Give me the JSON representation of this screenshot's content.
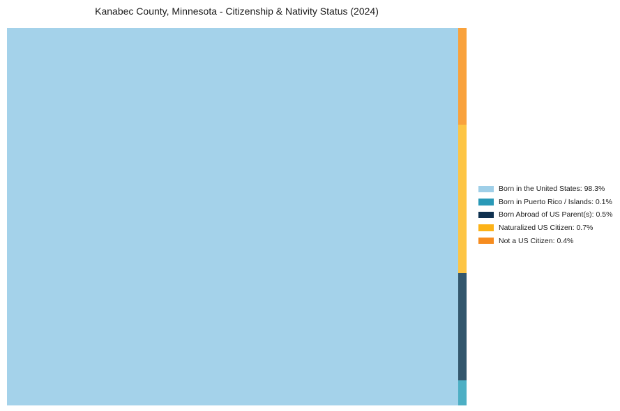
{
  "title": "Kanabec County, Minnesota - Citizenship & Nativity Status (2024)",
  "chart_data": {
    "type": "treemap",
    "title": "Kanabec County, Minnesota - Citizenship & Nativity Status (2024)",
    "categories": [
      "Born in the United States",
      "Born in Puerto Rico / Islands",
      "Born Abroad of US Parent(s)",
      "Naturalized US Citizen",
      "Not a US Citizen"
    ],
    "values": [
      98.3,
      0.1,
      0.5,
      0.7,
      0.4
    ],
    "unit": "%",
    "legend_position": "right",
    "layout": {
      "main": {
        "category": "Born in the United States",
        "value_pct": 98.3,
        "color": "#A4D2EA",
        "width_frac": 0.9818
      },
      "strip": {
        "width_frac": 0.0182,
        "segments": [
          {
            "key": "not-a-us-citizen",
            "category": "Not a US Citizen",
            "value_pct": 0.4,
            "color": "#F9A23C",
            "height_frac": 0.2565
          },
          {
            "key": "naturalized-us-citizen",
            "category": "Naturalized US Citizen",
            "value_pct": 0.7,
            "color": "#FDC544",
            "height_frac": 0.393
          },
          {
            "key": "born-abroad-us-parents",
            "category": "Born Abroad of US Parent(s)",
            "value_pct": 0.5,
            "color": "#33576D",
            "height_frac": 0.2841
          },
          {
            "key": "born-in-puerto-rico",
            "category": "Born in Puerto Rico / Islands",
            "value_pct": 0.1,
            "color": "#4DAFC4",
            "height_frac": 0.0664
          }
        ]
      }
    },
    "legend": [
      {
        "key": "born-in-us",
        "label": "Born in the United States: 98.3%",
        "color": "#9FCFE8"
      },
      {
        "key": "born-in-puerto-rico",
        "label": "Born in Puerto Rico / Islands: 0.1%",
        "color": "#2999B7"
      },
      {
        "key": "born-abroad-us-parents",
        "label": "Born Abroad of US Parent(s): 0.5%",
        "color": "#0F3150"
      },
      {
        "key": "naturalized-us-citizen",
        "label": "Naturalized US Citizen: 0.7%",
        "color": "#FCB217"
      },
      {
        "key": "not-a-us-citizen",
        "label": "Not a US Citizen: 0.4%",
        "color": "#F68C1F"
      }
    ]
  }
}
